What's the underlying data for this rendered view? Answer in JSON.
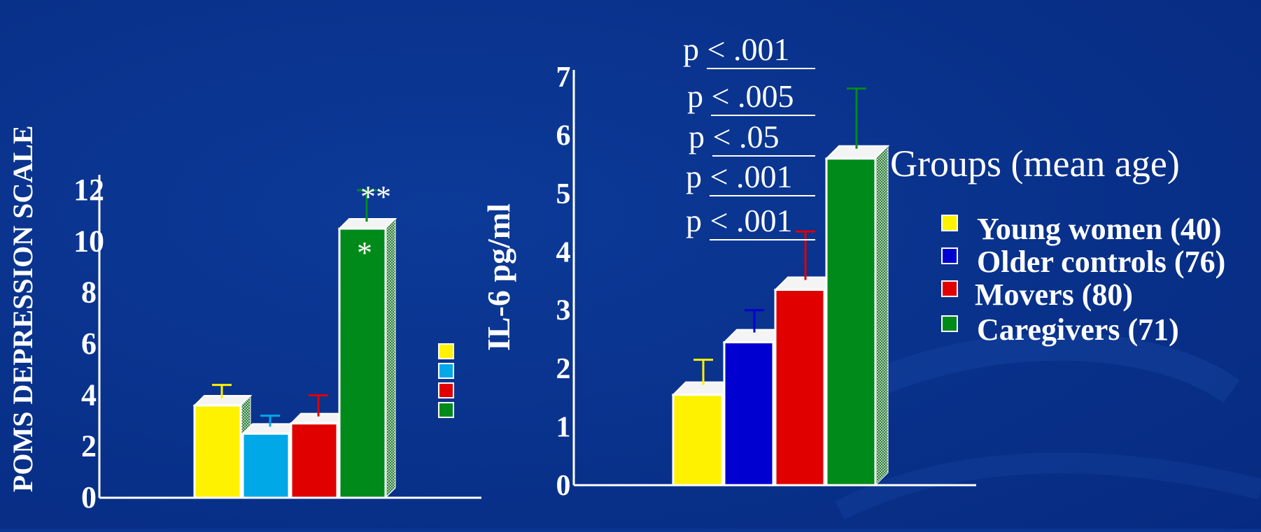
{
  "chart_data": [
    {
      "type": "bar",
      "ylabel": "POMS DEPRESSION SCALE",
      "ylim": [
        0,
        12
      ],
      "yticks": [
        "0",
        "2",
        "4",
        "6",
        "8",
        "10",
        "12"
      ],
      "categories": [
        "Young women",
        "Older controls",
        "Movers",
        "Caregivers"
      ],
      "values": [
        3.6,
        2.5,
        2.9,
        10.5
      ],
      "error_upper": [
        4.4,
        3.2,
        4.0,
        12.0
      ],
      "colors": [
        "#fff200",
        "#00a8e8",
        "#e00000",
        "#008a1a"
      ],
      "annotations": [
        "**",
        "*"
      ]
    },
    {
      "type": "bar",
      "ylabel": "IL-6 pg/ml",
      "ylim": [
        0,
        7
      ],
      "yticks": [
        "0",
        "1",
        "2",
        "3",
        "4",
        "5",
        "6",
        "7"
      ],
      "categories": [
        "Young women",
        "Older controls",
        "Movers",
        "Caregivers"
      ],
      "values": [
        1.55,
        2.45,
        3.35,
        5.6
      ],
      "error_upper": [
        2.15,
        3.0,
        4.35,
        6.8
      ],
      "colors": [
        "#fff200",
        "#0000d0",
        "#e00000",
        "#008a1a"
      ],
      "p_values": [
        "p < .001",
        "p < .005",
        "p < .05",
        "p < .001",
        "p < .001"
      ]
    }
  ],
  "legend": {
    "title": "Groups (mean age)",
    "items": [
      {
        "label": "Young women (40)",
        "color": "#fff200"
      },
      {
        "label": "Older controls (76)",
        "color": "#0000d0"
      },
      {
        "label": "Movers (80)",
        "color": "#e00000"
      },
      {
        "label": "Caregivers  (71)",
        "color": "#008a1a"
      }
    ],
    "swatch_colors": [
      "#fff200",
      "#00a8e8",
      "#e00000",
      "#008a1a"
    ]
  }
}
